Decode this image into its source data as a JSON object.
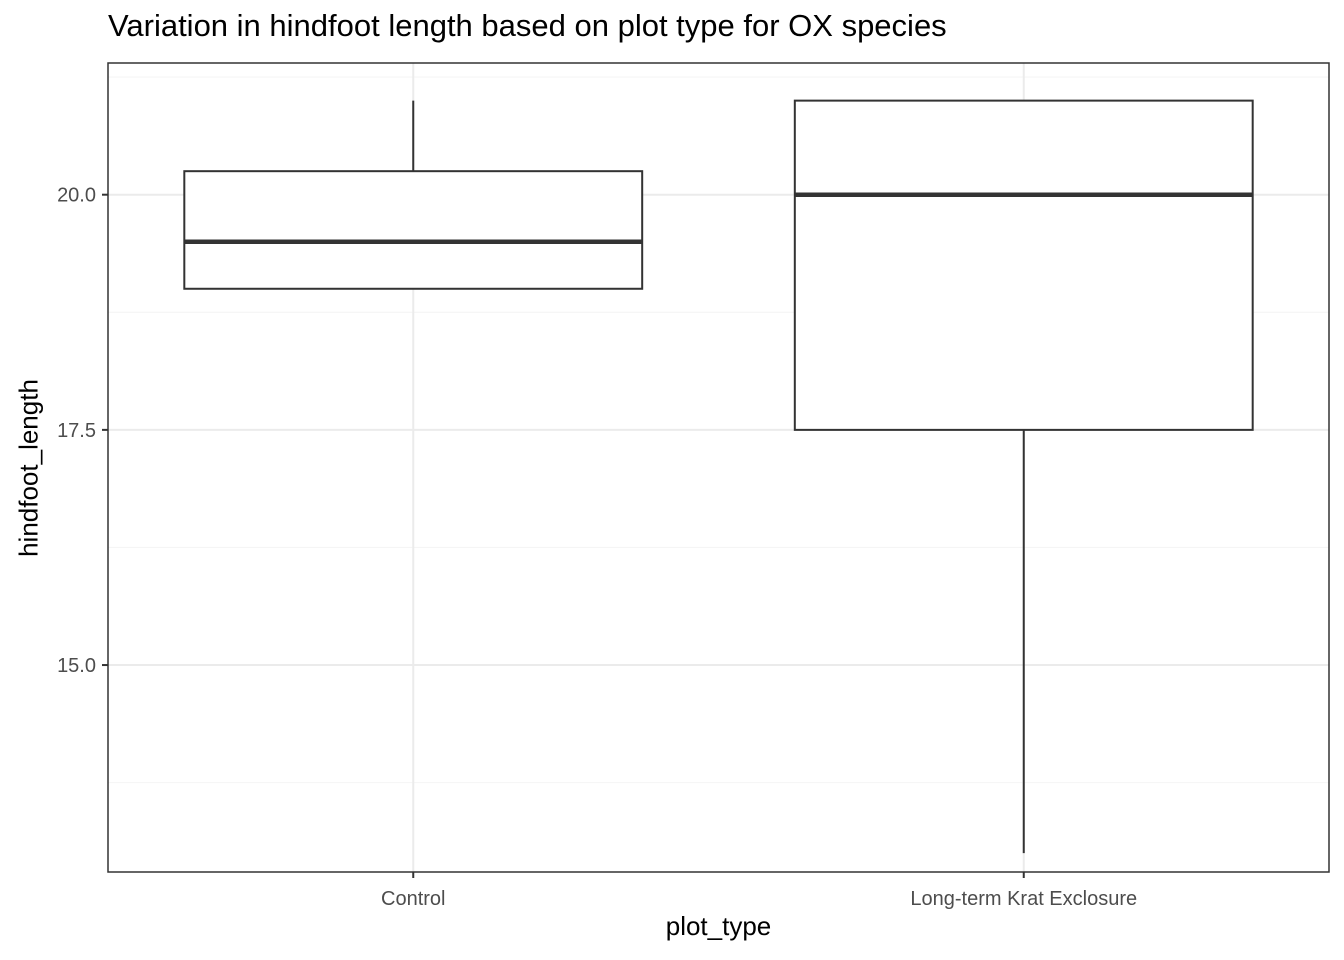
{
  "chart_data": {
    "type": "boxplot",
    "title": "Variation in hindfoot length based on plot type for OX species",
    "xlabel": "plot_type",
    "ylabel": "hindfoot_length",
    "categories": [
      "Control",
      "Long-term Krat Exclosure"
    ],
    "boxes": [
      {
        "category": "Control",
        "min": 19.0,
        "q1": 19.0,
        "median": 19.5,
        "q3": 20.25,
        "max": 21.0
      },
      {
        "category": "Long-term Krat Exclosure",
        "min": 13.0,
        "q1": 17.5,
        "median": 20.0,
        "q3": 21.0,
        "max": 21.0
      }
    ],
    "ylim": [
      12.8,
      21.4
    ],
    "y_ticks": [
      15.0,
      17.5,
      20.0
    ],
    "y_tick_labels": [
      "15.0",
      "17.5",
      "20.0"
    ],
    "grid": true,
    "theme": "bw",
    "colors": {
      "box_stroke": "#333333",
      "grid_major": "#ebebeb",
      "grid_minor": "#f5f5f5",
      "panel_border": "#333333",
      "tick_label": "#4d4d4d"
    }
  }
}
